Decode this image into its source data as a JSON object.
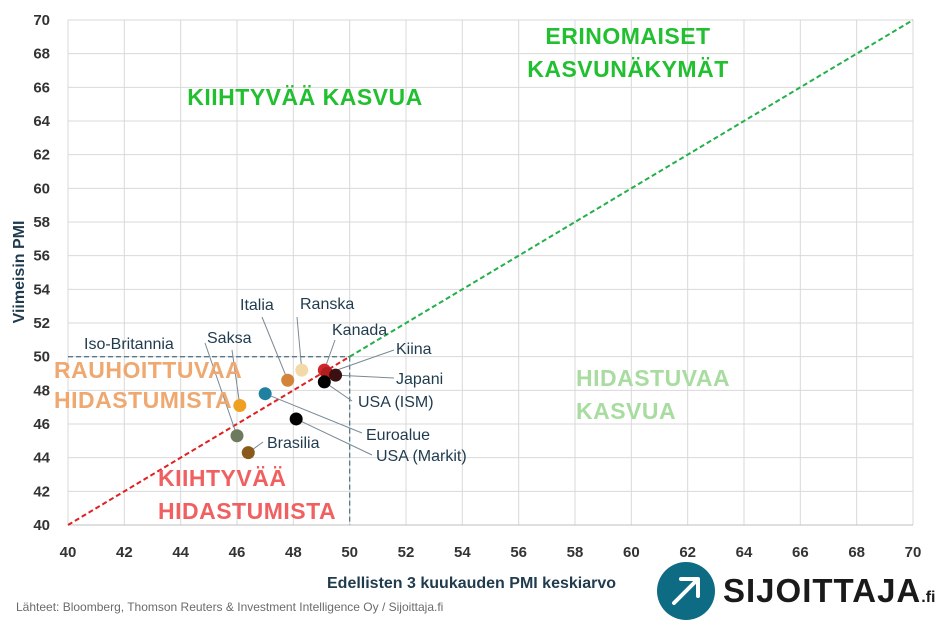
{
  "chart_data": {
    "type": "scatter",
    "xlabel": "Edellisten 3 kuukauden PMI keskiarvo",
    "ylabel": "Viimeisin PMI",
    "xlim": [
      40,
      70
    ],
    "ylim": [
      40,
      70
    ],
    "x_ticks": [
      "40",
      "42",
      "44",
      "46",
      "48",
      "50",
      "52",
      "54",
      "56",
      "58",
      "60",
      "62",
      "64",
      "66",
      "68",
      "70"
    ],
    "y_ticks": [
      "40",
      "42",
      "44",
      "46",
      "48",
      "50",
      "52",
      "54",
      "56",
      "58",
      "60",
      "62",
      "64",
      "66",
      "68",
      "70"
    ],
    "grid": true,
    "reference_line": {
      "from": [
        40,
        40
      ],
      "to": [
        70,
        70
      ],
      "color_below_50": "#e02020",
      "color_above_50": "#22b04a"
    },
    "threshold": 50,
    "points": [
      {
        "label": "Iso-Britannia",
        "x": 46.0,
        "y": 45.3,
        "color": "#6e7a5e"
      },
      {
        "label": "Saksa",
        "x": 46.1,
        "y": 47.1,
        "color": "#f0a020"
      },
      {
        "label": "Italia",
        "x": 47.8,
        "y": 48.6,
        "color": "#d2843a"
      },
      {
        "label": "Ranska",
        "x": 48.3,
        "y": 49.2,
        "color": "#f3d9a8"
      },
      {
        "label": "Kanada",
        "x": 49.1,
        "y": 49.2,
        "color": "#d0282a"
      },
      {
        "label": "Kiina",
        "x": 49.2,
        "y": 49.0,
        "color": "#b01e20"
      },
      {
        "label": "Japani",
        "x": 49.5,
        "y": 48.9,
        "color": "#3a1010"
      },
      {
        "label": "USA (ISM)",
        "x": 49.1,
        "y": 48.5,
        "color": "#000000"
      },
      {
        "label": "Euroalue",
        "x": 47.0,
        "y": 47.8,
        "color": "#2080a0"
      },
      {
        "label": "USA (Markit)",
        "x": 48.1,
        "y": 46.3,
        "color": "#000000"
      },
      {
        "label": "Brasilia",
        "x": 46.4,
        "y": 44.3,
        "color": "#8a5a1a"
      }
    ],
    "zones": [
      {
        "lines": [
          "ERINOMAISET",
          "KASVUNÄKYMÄT"
        ],
        "color": "#22c030"
      },
      {
        "lines": [
          "KIIHTYVÄÄ KASVUA"
        ],
        "color": "#22c030"
      },
      {
        "lines": [
          "HIDASTUVAA",
          "KASVUA"
        ],
        "color": "#a8dca0"
      },
      {
        "lines": [
          "RAUHOITTUVAA",
          "HIDASTUMISTA"
        ],
        "color": "#eea870"
      },
      {
        "lines": [
          "KIIHTYVÄÄ",
          "HIDASTUMISTA"
        ],
        "color": "#f06060"
      }
    ]
  },
  "footer": {
    "source": "Lähteet: Bloomberg, Thomson Reuters & Investment Intelligence Oy / Sijoittaja.fi",
    "brand": "SIJOITTAJA",
    "brand_suffix": ".fi"
  }
}
